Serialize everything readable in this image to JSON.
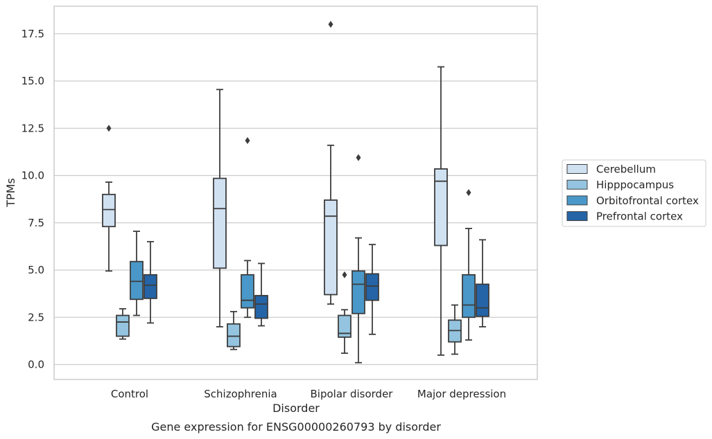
{
  "chart_data": {
    "type": "box",
    "title": "Gene expression for ENSG00000260793 by disorder",
    "xlabel": "Disorder",
    "ylabel": "TPMs",
    "categories": [
      "Control",
      "Schizophrenia",
      "Bipolar disorder",
      "Major depression"
    ],
    "ylim": [
      -0.8,
      18.9
    ],
    "yticks": [
      0.0,
      2.5,
      5.0,
      7.5,
      10.0,
      12.5,
      15.0,
      17.5
    ],
    "ytick_labels": [
      "0.0",
      "2.5",
      "5.0",
      "7.5",
      "10.0",
      "12.5",
      "15.0",
      "17.5"
    ],
    "grid": "horizontal",
    "legend_position": "right",
    "series": [
      {
        "name": "Cerebellum",
        "color": "#d0e1f2",
        "boxes": [
          {
            "whislo": 4.95,
            "q1": 7.3,
            "med": 8.2,
            "q3": 9.0,
            "whishi": 9.65,
            "fliers": [
              12.5
            ]
          },
          {
            "whislo": 2.0,
            "q1": 5.1,
            "med": 8.25,
            "q3": 9.85,
            "whishi": 14.55,
            "fliers": []
          },
          {
            "whislo": 3.2,
            "q1": 3.7,
            "med": 7.85,
            "q3": 8.7,
            "whishi": 11.6,
            "fliers": [
              18.0
            ]
          },
          {
            "whislo": 0.5,
            "q1": 6.3,
            "med": 9.7,
            "q3": 10.35,
            "whishi": 15.75,
            "fliers": []
          }
        ]
      },
      {
        "name": "Hipppocampus",
        "color": "#94c4df",
        "boxes": [
          {
            "whislo": 1.35,
            "q1": 1.5,
            "med": 2.25,
            "q3": 2.6,
            "whishi": 2.95,
            "fliers": []
          },
          {
            "whislo": 0.8,
            "q1": 0.95,
            "med": 1.5,
            "q3": 2.15,
            "whishi": 2.8,
            "fliers": []
          },
          {
            "whislo": 0.6,
            "q1": 1.45,
            "med": 1.65,
            "q3": 2.6,
            "whishi": 2.9,
            "fliers": [
              4.75
            ]
          },
          {
            "whislo": 0.55,
            "q1": 1.2,
            "med": 1.8,
            "q3": 2.35,
            "whishi": 3.15,
            "fliers": []
          }
        ]
      },
      {
        "name": "Orbitofrontal cortex",
        "color": "#4a98c9",
        "boxes": [
          {
            "whislo": 2.6,
            "q1": 3.45,
            "med": 4.4,
            "q3": 5.45,
            "whishi": 7.05,
            "fliers": []
          },
          {
            "whislo": 2.5,
            "q1": 3.0,
            "med": 3.4,
            "q3": 4.75,
            "whishi": 5.5,
            "fliers": [
              11.85
            ]
          },
          {
            "whislo": 0.1,
            "q1": 2.7,
            "med": 4.25,
            "q3": 4.95,
            "whishi": 6.7,
            "fliers": [
              10.95
            ]
          },
          {
            "whislo": 1.3,
            "q1": 2.5,
            "med": 3.15,
            "q3": 4.75,
            "whishi": 7.2,
            "fliers": [
              9.1
            ]
          }
        ]
      },
      {
        "name": "Prefrontal cortex",
        "color": "#2464a7",
        "boxes": [
          {
            "whislo": 2.2,
            "q1": 3.5,
            "med": 4.2,
            "q3": 4.75,
            "whishi": 6.5,
            "fliers": []
          },
          {
            "whislo": 2.05,
            "q1": 2.45,
            "med": 3.2,
            "q3": 3.65,
            "whishi": 5.35,
            "fliers": []
          },
          {
            "whislo": 1.6,
            "q1": 3.4,
            "med": 4.15,
            "q3": 4.8,
            "whishi": 6.35,
            "fliers": []
          },
          {
            "whislo": 2.0,
            "q1": 2.55,
            "med": 3.0,
            "q3": 4.25,
            "whishi": 6.6,
            "fliers": []
          }
        ]
      }
    ]
  }
}
